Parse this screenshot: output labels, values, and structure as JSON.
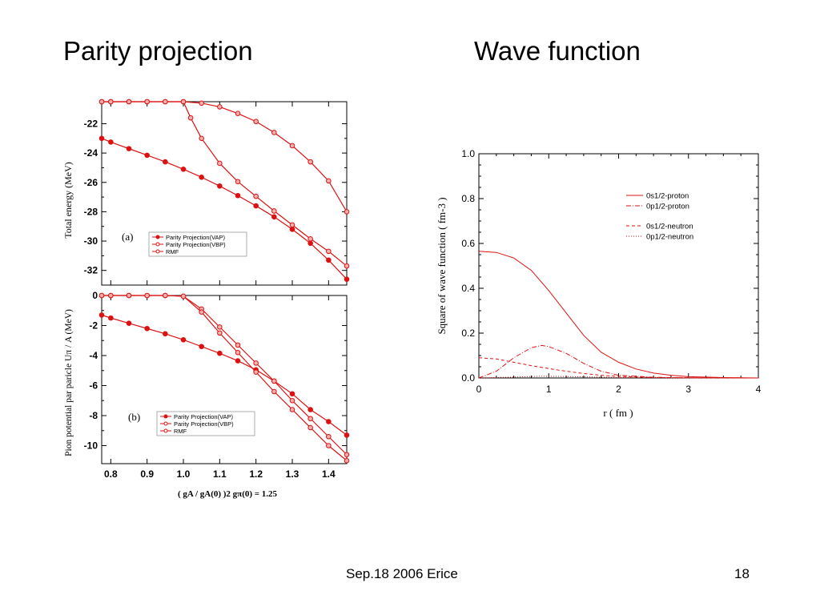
{
  "slide": {
    "title_left": "Parity projection",
    "title_right": "Wave function",
    "footer_left": "Sep.18 2006 Erice",
    "footer_right": "18"
  },
  "colors": {
    "curve": "#dd1111",
    "frame": "#000000"
  },
  "chart_data": [
    {
      "type": "line",
      "panel_label": "(a)",
      "ylabel": "Total energy (MeV)",
      "ylim": [
        -33,
        -20.5
      ],
      "xlim": [
        0.775,
        1.45
      ],
      "yticks": [
        -22,
        -24,
        -26,
        -28,
        -30,
        -32
      ],
      "xticks": [],
      "series": [
        {
          "name": "Parity Projection(VAP)",
          "marker": "filled",
          "x": [
            0.775,
            0.8,
            0.85,
            0.9,
            0.95,
            1.0,
            1.05,
            1.1,
            1.15,
            1.2,
            1.25,
            1.3,
            1.35,
            1.4,
            1.45
          ],
          "y": [
            -23.0,
            -23.25,
            -23.7,
            -24.15,
            -24.6,
            -25.1,
            -25.65,
            -26.25,
            -26.9,
            -27.6,
            -28.35,
            -29.2,
            -30.15,
            -31.3,
            -32.6
          ]
        },
        {
          "name": "Parity Projection(VBP)",
          "marker": "open",
          "x": [
            0.775,
            0.8,
            0.85,
            0.9,
            0.95,
            1.0,
            1.02,
            1.05,
            1.1,
            1.15,
            1.2,
            1.25,
            1.3,
            1.35,
            1.4,
            1.45
          ],
          "y": [
            -20.5,
            -20.5,
            -20.5,
            -20.5,
            -20.5,
            -20.5,
            -21.6,
            -23.0,
            -24.7,
            -25.95,
            -26.95,
            -27.95,
            -28.9,
            -29.85,
            -30.7,
            -31.7
          ]
        },
        {
          "name": "RMF",
          "marker": "open",
          "x": [
            0.775,
            0.8,
            0.85,
            0.9,
            0.95,
            1.0,
            1.05,
            1.1,
            1.15,
            1.2,
            1.25,
            1.3,
            1.35,
            1.4,
            1.45
          ],
          "y": [
            -20.5,
            -20.5,
            -20.5,
            -20.5,
            -20.5,
            -20.5,
            -20.6,
            -20.85,
            -21.3,
            -21.85,
            -22.6,
            -23.5,
            -24.6,
            -25.9,
            -28.0
          ]
        }
      ]
    },
    {
      "type": "line",
      "panel_label": "(b)",
      "ylabel": "Pion potential par paricle  Uπ / A    (MeV)",
      "xlabel": "( gA / gA(0) )2          gπ(0) = 1.25",
      "ylim": [
        -11.2,
        0
      ],
      "xlim": [
        0.775,
        1.45
      ],
      "yticks": [
        0,
        -2,
        -4,
        -6,
        -8,
        -10
      ],
      "xticks": [
        0.8,
        0.9,
        1.0,
        1.1,
        1.2,
        1.3,
        1.4
      ],
      "series": [
        {
          "name": "Parity Projection(VAP)",
          "marker": "filled",
          "x": [
            0.775,
            0.8,
            0.85,
            0.9,
            0.95,
            1.0,
            1.05,
            1.1,
            1.15,
            1.2,
            1.25,
            1.3,
            1.35,
            1.4,
            1.45
          ],
          "y": [
            -1.3,
            -1.5,
            -1.85,
            -2.2,
            -2.55,
            -2.95,
            -3.4,
            -3.85,
            -4.35,
            -4.95,
            -5.7,
            -6.55,
            -7.6,
            -8.4,
            -9.3
          ]
        },
        {
          "name": "Parity Projection(VBP)",
          "marker": "open",
          "x": [
            0.775,
            0.8,
            0.85,
            0.9,
            0.95,
            1.0,
            1.05,
            1.1,
            1.15,
            1.2,
            1.25,
            1.3,
            1.35,
            1.4,
            1.45
          ],
          "y": [
            0,
            0,
            0,
            0,
            0,
            -0.05,
            -0.9,
            -2.1,
            -3.3,
            -4.5,
            -5.7,
            -7.0,
            -8.2,
            -9.4,
            -10.6
          ]
        },
        {
          "name": "RMF",
          "marker": "open",
          "x": [
            0.775,
            0.8,
            0.85,
            0.9,
            0.95,
            1.0,
            1.05,
            1.1,
            1.15,
            1.2,
            1.25,
            1.3,
            1.35,
            1.4,
            1.45
          ],
          "y": [
            0,
            0,
            0,
            0,
            0,
            -0.05,
            -1.1,
            -2.5,
            -3.8,
            -5.1,
            -6.4,
            -7.6,
            -8.8,
            -10.0,
            -11.0
          ]
        }
      ]
    },
    {
      "type": "line",
      "xlabel": "r  ( fm )",
      "ylabel": "Square of wave function ( fm-3 )",
      "xlim": [
        0,
        4
      ],
      "ylim": [
        0,
        1.0
      ],
      "xticks": [
        0,
        1,
        2,
        3,
        4
      ],
      "yticks": [
        0.0,
        0.2,
        0.4,
        0.6,
        0.8,
        1.0
      ],
      "series": [
        {
          "name": "0s1/2-proton",
          "style": "solid",
          "x": [
            0,
            0.25,
            0.5,
            0.75,
            1.0,
            1.25,
            1.5,
            1.75,
            2.0,
            2.25,
            2.5,
            2.75,
            3.0,
            3.5,
            4.0
          ],
          "y": [
            0.565,
            0.56,
            0.535,
            0.48,
            0.39,
            0.29,
            0.19,
            0.115,
            0.07,
            0.04,
            0.022,
            0.012,
            0.006,
            0.002,
            0.0
          ]
        },
        {
          "name": "0p1/2-proton",
          "style": "dash-dot",
          "x": [
            0,
            0.25,
            0.5,
            0.75,
            0.9,
            1.0,
            1.25,
            1.5,
            1.75,
            2.0,
            2.5,
            3.0,
            4.0
          ],
          "y": [
            0.0,
            0.03,
            0.09,
            0.135,
            0.145,
            0.14,
            0.11,
            0.065,
            0.03,
            0.012,
            0.003,
            0.001,
            0.0
          ]
        },
        {
          "name": "0s1/2-neutron",
          "style": "dash",
          "x": [
            0,
            0.25,
            0.5,
            0.75,
            1.0,
            1.25,
            1.5,
            1.75,
            2.0,
            2.5,
            3.0,
            4.0
          ],
          "y": [
            0.09,
            0.085,
            0.07,
            0.055,
            0.042,
            0.03,
            0.02,
            0.012,
            0.007,
            0.002,
            0.001,
            0.0
          ]
        },
        {
          "name": "0p1/2-neutron",
          "style": "dotted",
          "x": [
            0,
            0.5,
            0.9,
            1.5,
            2.0,
            3.0,
            4.0
          ],
          "y": [
            0.0,
            0.004,
            0.008,
            0.005,
            0.002,
            0.0,
            0.0
          ]
        }
      ]
    }
  ]
}
